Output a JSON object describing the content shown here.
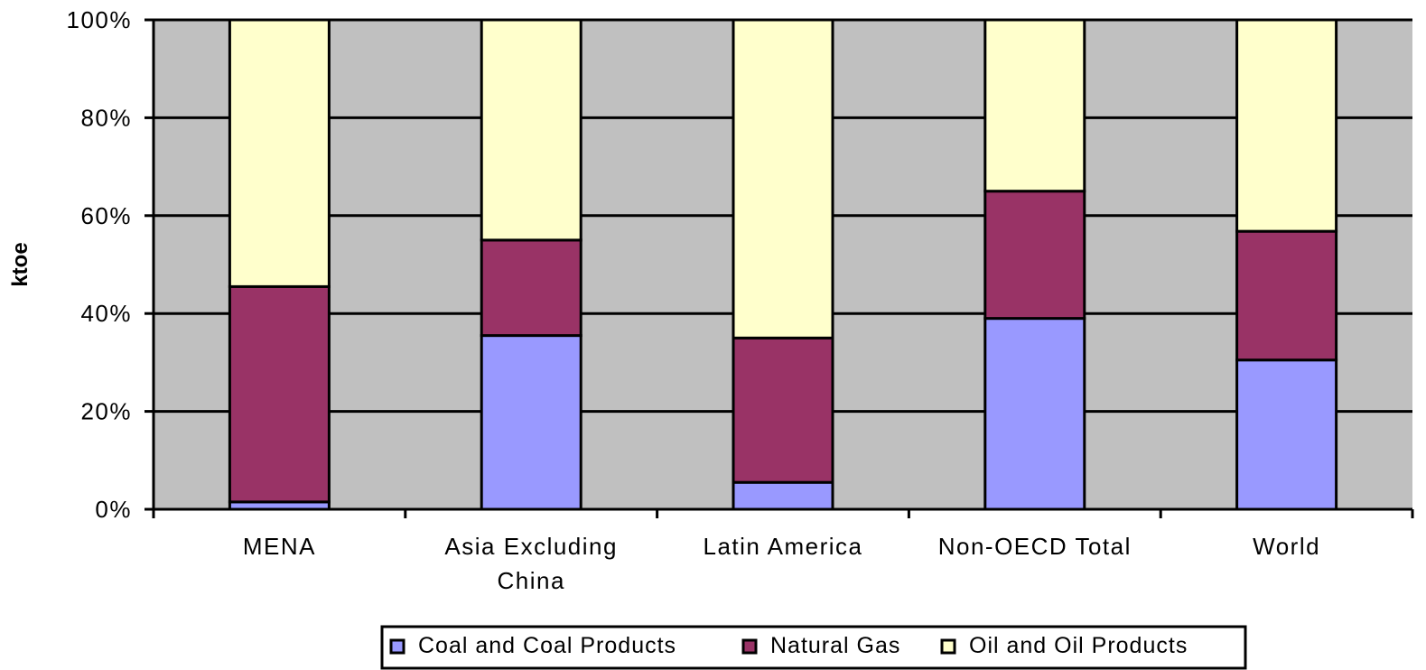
{
  "chart_data": {
    "type": "bar",
    "stacked": true,
    "normalized": true,
    "categories": [
      "MENA",
      "Asia Excluding China",
      "Latin America",
      "Non-OECD Total",
      "World"
    ],
    "category_lines": [
      [
        "MENA"
      ],
      [
        "Asia Excluding",
        "China"
      ],
      [
        "Latin America"
      ],
      [
        "Non-OECD Total"
      ],
      [
        "World"
      ]
    ],
    "series": [
      {
        "name": "Coal and Coal Products",
        "values": [
          1.5,
          35.5,
          5.5,
          39,
          30.5
        ],
        "color": "#9999FF"
      },
      {
        "name": "Natural Gas",
        "values": [
          44,
          19.5,
          29.5,
          26,
          26.3
        ],
        "color": "#993366"
      },
      {
        "name": "Oil and Oil Products",
        "values": [
          54.5,
          45,
          65,
          35,
          43.2
        ],
        "color": "#FFFFCC"
      }
    ],
    "ylabel": "ktoe",
    "xlabel": "",
    "ylim": [
      0,
      100
    ],
    "y_ticks": [
      "0%",
      "20%",
      "40%",
      "60%",
      "80%",
      "100%"
    ],
    "y_tick_values": [
      0,
      20,
      40,
      60,
      80,
      100
    ],
    "grid": true,
    "legend_position": "bottom",
    "plot_background": "#C0C0C0"
  }
}
